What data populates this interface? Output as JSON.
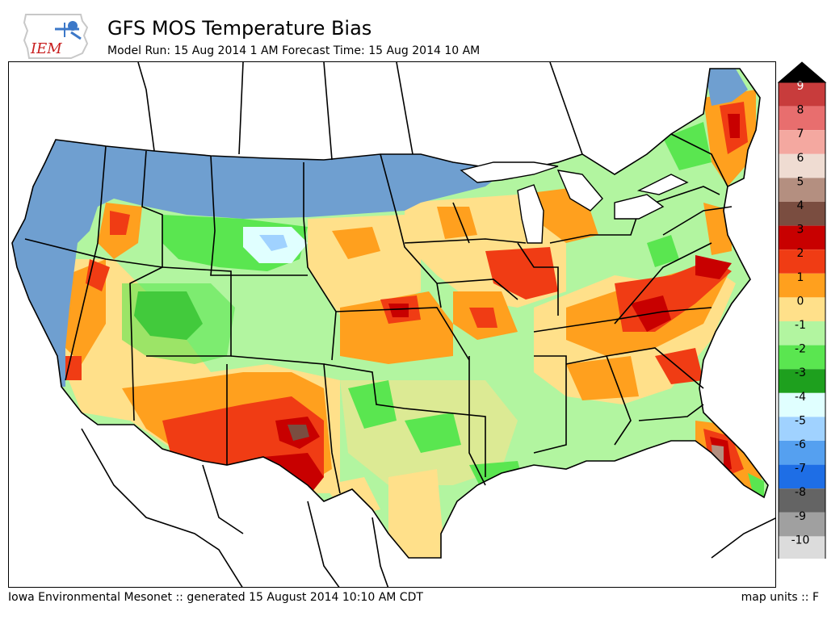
{
  "logo": {
    "text": "IEM"
  },
  "header": {
    "title": "GFS MOS Temperature Bias",
    "subtitle": "Model Run: 15 Aug 2014 1 AM Forecast Time: 15 Aug 2014 10 AM"
  },
  "footer": {
    "credit": "Iowa Environmental Mesonet :: generated 15 August 2014 10:10 AM CDT",
    "units": "map units :: F"
  },
  "colorbar": {
    "levels": [
      {
        "label": "9",
        "color": "#c83c3c"
      },
      {
        "label": "8",
        "color": "#e86e6e"
      },
      {
        "label": "7",
        "color": "#f4a8a0"
      },
      {
        "label": "6",
        "color": "#efdcd2"
      },
      {
        "label": "5",
        "color": "#b48f80"
      },
      {
        "label": "4",
        "color": "#7a4d40"
      },
      {
        "label": "3",
        "color": "#c80000"
      },
      {
        "label": "2",
        "color": "#f03c14"
      },
      {
        "label": "1",
        "color": "#ffa01e"
      },
      {
        "label": "0",
        "color": "#ffe08a"
      },
      {
        "label": "-1",
        "color": "#b2f5a0"
      },
      {
        "label": "-2",
        "color": "#5ae650"
      },
      {
        "label": "-3",
        "color": "#1ea01e"
      },
      {
        "label": "-4",
        "color": "#e0ffff"
      },
      {
        "label": "-5",
        "color": "#a0d2ff"
      },
      {
        "label": "-6",
        "color": "#55a0f0"
      },
      {
        "label": "-7",
        "color": "#1e6ee6"
      },
      {
        "label": "-8",
        "color": "#646464"
      },
      {
        "label": "-9",
        "color": "#a0a0a0"
      },
      {
        "label": "-10",
        "color": "#dcdcdc"
      }
    ],
    "over_color": "#000000",
    "under_color": "#ffffff"
  },
  "map": {
    "no_data_color": "#6f9fd0",
    "boundary_color": "#000000"
  }
}
